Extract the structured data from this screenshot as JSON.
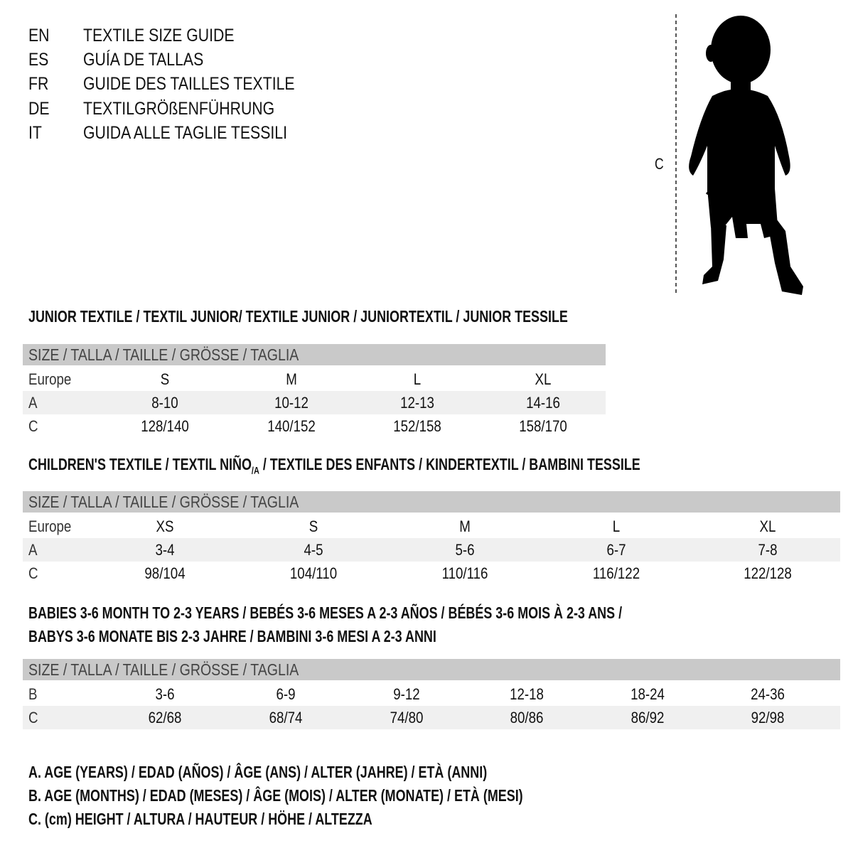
{
  "titles": [
    {
      "lang": "EN",
      "text": "TEXTILE SIZE GUIDE"
    },
    {
      "lang": "ES",
      "text": "GUÍA DE TALLAS"
    },
    {
      "lang": "FR",
      "text": "GUIDE DES TAILLES TEXTILE"
    },
    {
      "lang": "DE",
      "text": "TEXTILGRÖßENFÜHRUNG"
    },
    {
      "lang": "IT",
      "text": "GUIDA ALLE TAGLIE TESSILI"
    }
  ],
  "figure": {
    "measure_label": "C",
    "icon": "child-silhouette"
  },
  "junior": {
    "heading": "JUNIOR TEXTILE / TEXTIL JUNIOR/ TEXTILE JUNIOR / JUNIORTEXTIL / JUNIOR TESSILE",
    "header": "SIZE / TALLA / TAILLE / GRÖSSE / TAGLIA",
    "rows": [
      {
        "label": "Europe",
        "values": [
          "S",
          "M",
          "L",
          "XL"
        ]
      },
      {
        "label": "A",
        "values": [
          "8-10",
          "10-12",
          "12-13",
          "14-16"
        ]
      },
      {
        "label": "C",
        "values": [
          "128/140",
          "140/152",
          "152/158",
          "158/170"
        ]
      }
    ]
  },
  "children": {
    "heading_a": "CHILDREN'S TEXTILE / TEXTIL NIÑO",
    "heading_sub": "/A",
    "heading_b": " / TEXTILE DES ENFANTS / KINDERTEXTIL / BAMBINI TESSILE",
    "header": "SIZE / TALLA / TAILLE / GRÖSSE / TAGLIA",
    "rows": [
      {
        "label": "Europe",
        "values": [
          "XS",
          "S",
          "M",
          "L",
          "XL"
        ]
      },
      {
        "label": "A",
        "values": [
          "3-4",
          "4-5",
          "5-6",
          "6-7",
          "7-8"
        ]
      },
      {
        "label": "C",
        "values": [
          "98/104",
          "104/110",
          "110/116",
          "116/122",
          "122/128"
        ]
      }
    ]
  },
  "babies": {
    "heading_1": "BABIES 3-6 MONTH TO 2-3 YEARS / BEBÉS 3-6 MESES A 2-3 AÑOS / BÉBÉS 3-6 MOIS À 2-3 ANS /",
    "heading_2": "BABYS 3-6 MONATE BIS 2-3 JAHRE / BAMBINI 3-6 MESI A 2-3 ANNI",
    "header": "SIZE / TALLA / TAILLE / GRÖSSE / TAGLIA",
    "rows": [
      {
        "label": "B",
        "values": [
          "3-6",
          "6-9",
          "9-12",
          "12-18",
          "18-24",
          "24-36"
        ]
      },
      {
        "label": "C",
        "values": [
          "62/68",
          "68/74",
          "74/80",
          "80/86",
          "86/92",
          "92/98"
        ]
      }
    ]
  },
  "legend": [
    "A. AGE (YEARS) / EDAD (AÑOS) / ÂGE (ANS) / ALTER (JAHRE) / ETÀ (ANNI)",
    "B. AGE (MONTHS) / EDAD (MESES) / ÂGE (MOIS) / ALTER (MONATE) / ETÀ (MESI)",
    "C. (cm) HEIGHT / ALTURA / HAUTEUR / HÖHE / ALTEZZA"
  ]
}
